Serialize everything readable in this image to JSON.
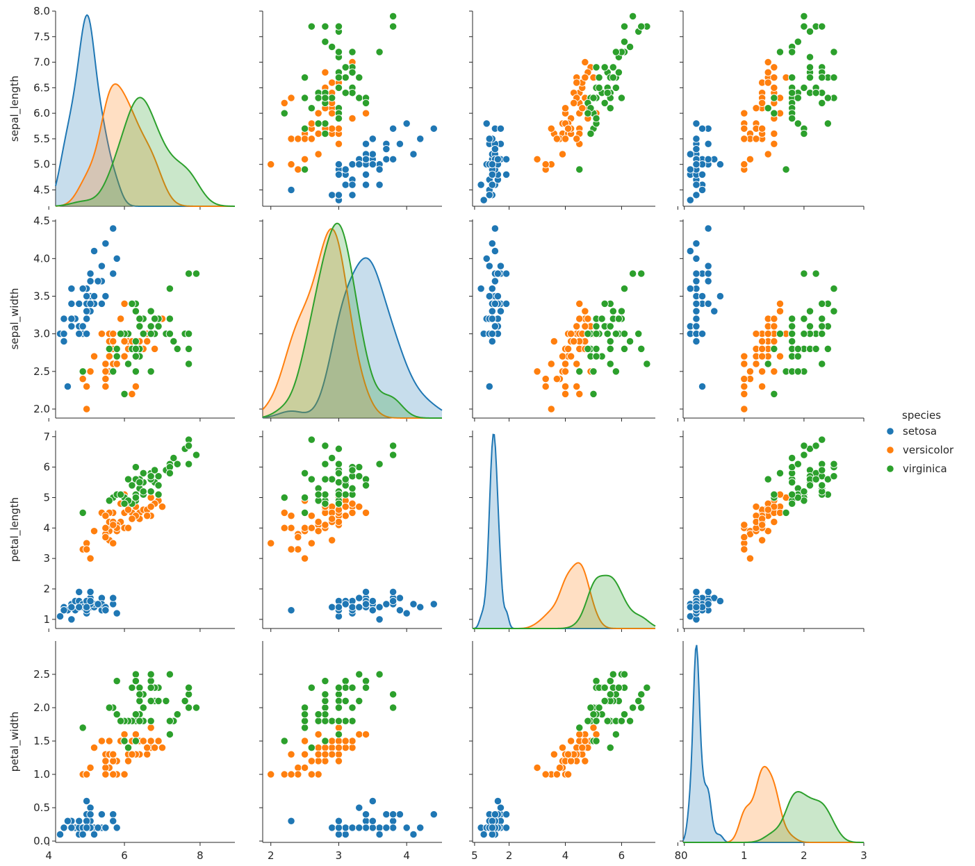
{
  "chart_data": {
    "type": "scatter",
    "kind": "pairplot",
    "variables": [
      "sepal_length",
      "sepal_width",
      "petal_length",
      "petal_width"
    ],
    "axis_limits": {
      "sepal_length": [
        4.18,
        8.92
      ],
      "sepal_width": [
        1.88,
        4.52
      ],
      "petal_length": [
        0.7,
        7.2
      ],
      "petal_width": [
        -0.02,
        3.0
      ]
    },
    "y_limits_first_row": [
      4.18,
      8.0
    ],
    "x_ticks": {
      "sepal_length": [
        "4",
        "6",
        "8"
      ],
      "sepal_width": [
        "2",
        "3",
        "4",
        "5"
      ],
      "petal_length": [
        "2",
        "4",
        "6",
        "8"
      ],
      "petal_width": [
        "0",
        "1",
        "2",
        "3"
      ]
    },
    "y_ticks": {
      "sepal_length": [
        "4.5",
        "5.0",
        "5.5",
        "6.0",
        "6.5",
        "7.0",
        "7.5",
        "8.0"
      ],
      "sepal_width": [
        "2.0",
        "2.5",
        "3.0",
        "3.5",
        "4.0",
        "4.5"
      ],
      "petal_length": [
        "1",
        "2",
        "3",
        "4",
        "5",
        "6",
        "7"
      ],
      "petal_width": [
        "0.0",
        "0.5",
        "1.0",
        "1.5",
        "2.0",
        "2.5"
      ]
    },
    "legend": {
      "title": "species",
      "placement": "center-right"
    },
    "diagonal": "kde",
    "series": [
      {
        "name": "setosa",
        "color": "#1f77b4",
        "points": [
          [
            5.1,
            3.5,
            1.4,
            0.2
          ],
          [
            4.9,
            3.0,
            1.4,
            0.2
          ],
          [
            4.7,
            3.2,
            1.3,
            0.2
          ],
          [
            4.6,
            3.1,
            1.5,
            0.2
          ],
          [
            5.0,
            3.6,
            1.4,
            0.2
          ],
          [
            5.4,
            3.9,
            1.7,
            0.4
          ],
          [
            4.6,
            3.4,
            1.4,
            0.3
          ],
          [
            5.0,
            3.4,
            1.5,
            0.2
          ],
          [
            4.4,
            2.9,
            1.4,
            0.2
          ],
          [
            4.9,
            3.1,
            1.5,
            0.1
          ],
          [
            5.4,
            3.7,
            1.5,
            0.2
          ],
          [
            4.8,
            3.4,
            1.6,
            0.2
          ],
          [
            4.8,
            3.0,
            1.4,
            0.1
          ],
          [
            4.3,
            3.0,
            1.1,
            0.1
          ],
          [
            5.8,
            4.0,
            1.2,
            0.2
          ],
          [
            5.7,
            4.4,
            1.5,
            0.4
          ],
          [
            5.4,
            3.9,
            1.3,
            0.4
          ],
          [
            5.1,
            3.5,
            1.4,
            0.3
          ],
          [
            5.7,
            3.8,
            1.7,
            0.3
          ],
          [
            5.1,
            3.8,
            1.5,
            0.3
          ],
          [
            5.4,
            3.4,
            1.7,
            0.2
          ],
          [
            5.1,
            3.7,
            1.5,
            0.4
          ],
          [
            4.6,
            3.6,
            1.0,
            0.2
          ],
          [
            5.1,
            3.3,
            1.7,
            0.5
          ],
          [
            4.8,
            3.4,
            1.9,
            0.2
          ],
          [
            5.0,
            3.0,
            1.6,
            0.2
          ],
          [
            5.0,
            3.4,
            1.6,
            0.4
          ],
          [
            5.2,
            3.5,
            1.5,
            0.2
          ],
          [
            5.2,
            3.4,
            1.4,
            0.2
          ],
          [
            4.7,
            3.2,
            1.6,
            0.2
          ],
          [
            4.8,
            3.1,
            1.6,
            0.2
          ],
          [
            5.4,
            3.4,
            1.5,
            0.4
          ],
          [
            5.2,
            4.1,
            1.5,
            0.1
          ],
          [
            5.5,
            4.2,
            1.4,
            0.2
          ],
          [
            4.9,
            3.1,
            1.5,
            0.2
          ],
          [
            5.0,
            3.2,
            1.2,
            0.2
          ],
          [
            5.5,
            3.5,
            1.3,
            0.2
          ],
          [
            4.9,
            3.6,
            1.4,
            0.1
          ],
          [
            4.4,
            3.0,
            1.3,
            0.2
          ],
          [
            5.1,
            3.4,
            1.5,
            0.2
          ],
          [
            5.0,
            3.5,
            1.3,
            0.3
          ],
          [
            4.5,
            2.3,
            1.3,
            0.3
          ],
          [
            4.4,
            3.2,
            1.3,
            0.2
          ],
          [
            5.0,
            3.5,
            1.6,
            0.6
          ],
          [
            5.1,
            3.8,
            1.9,
            0.4
          ],
          [
            4.8,
            3.0,
            1.4,
            0.3
          ],
          [
            5.1,
            3.8,
            1.6,
            0.2
          ],
          [
            4.6,
            3.2,
            1.4,
            0.2
          ],
          [
            5.3,
            3.7,
            1.5,
            0.2
          ],
          [
            5.0,
            3.3,
            1.4,
            0.2
          ]
        ]
      },
      {
        "name": "versicolor",
        "color": "#ff7f0e",
        "points": [
          [
            7.0,
            3.2,
            4.7,
            1.4
          ],
          [
            6.4,
            3.2,
            4.5,
            1.5
          ],
          [
            6.9,
            3.1,
            4.9,
            1.5
          ],
          [
            5.5,
            2.3,
            4.0,
            1.3
          ],
          [
            6.5,
            2.8,
            4.6,
            1.5
          ],
          [
            5.7,
            2.8,
            4.5,
            1.3
          ],
          [
            6.3,
            3.3,
            4.7,
            1.6
          ],
          [
            4.9,
            2.4,
            3.3,
            1.0
          ],
          [
            6.6,
            2.9,
            4.6,
            1.3
          ],
          [
            5.2,
            2.7,
            3.9,
            1.4
          ],
          [
            5.0,
            2.0,
            3.5,
            1.0
          ],
          [
            5.9,
            3.0,
            4.2,
            1.5
          ],
          [
            6.0,
            2.2,
            4.0,
            1.0
          ],
          [
            6.1,
            2.9,
            4.7,
            1.4
          ],
          [
            5.6,
            2.9,
            3.6,
            1.3
          ],
          [
            6.7,
            3.1,
            4.4,
            1.4
          ],
          [
            5.6,
            3.0,
            4.5,
            1.5
          ],
          [
            5.8,
            2.7,
            4.1,
            1.0
          ],
          [
            6.2,
            2.2,
            4.5,
            1.5
          ],
          [
            5.6,
            2.5,
            3.9,
            1.1
          ],
          [
            5.9,
            3.2,
            4.8,
            1.8
          ],
          [
            6.1,
            2.8,
            4.0,
            1.3
          ],
          [
            6.3,
            2.5,
            4.9,
            1.5
          ],
          [
            6.1,
            2.8,
            4.7,
            1.2
          ],
          [
            6.4,
            2.9,
            4.3,
            1.3
          ],
          [
            6.6,
            3.0,
            4.4,
            1.4
          ],
          [
            6.8,
            2.8,
            4.8,
            1.4
          ],
          [
            6.7,
            3.0,
            5.0,
            1.7
          ],
          [
            6.0,
            2.9,
            4.5,
            1.5
          ],
          [
            5.7,
            2.6,
            3.5,
            1.0
          ],
          [
            5.5,
            2.4,
            3.8,
            1.1
          ],
          [
            5.5,
            2.4,
            3.7,
            1.0
          ],
          [
            5.8,
            2.7,
            3.9,
            1.2
          ],
          [
            6.0,
            2.7,
            5.1,
            1.6
          ],
          [
            5.4,
            3.0,
            4.5,
            1.5
          ],
          [
            6.0,
            3.4,
            4.5,
            1.6
          ],
          [
            6.7,
            3.1,
            4.7,
            1.5
          ],
          [
            6.3,
            2.3,
            4.4,
            1.3
          ],
          [
            5.6,
            3.0,
            4.1,
            1.3
          ],
          [
            5.5,
            2.5,
            4.0,
            1.3
          ],
          [
            5.5,
            2.6,
            4.4,
            1.2
          ],
          [
            6.1,
            3.0,
            4.6,
            1.4
          ],
          [
            5.8,
            2.6,
            4.0,
            1.2
          ],
          [
            5.0,
            2.3,
            3.3,
            1.0
          ],
          [
            5.6,
            2.7,
            4.2,
            1.3
          ],
          [
            5.7,
            3.0,
            4.2,
            1.2
          ],
          [
            5.7,
            2.9,
            4.2,
            1.3
          ],
          [
            6.2,
            2.9,
            4.3,
            1.3
          ],
          [
            5.1,
            2.5,
            3.0,
            1.1
          ],
          [
            5.7,
            2.8,
            4.1,
            1.3
          ]
        ]
      },
      {
        "name": "virginica",
        "color": "#2ca02c",
        "points": [
          [
            6.3,
            3.3,
            6.0,
            2.5
          ],
          [
            5.8,
            2.7,
            5.1,
            1.9
          ],
          [
            7.1,
            3.0,
            5.9,
            2.1
          ],
          [
            6.3,
            2.9,
            5.6,
            1.8
          ],
          [
            6.5,
            3.0,
            5.8,
            2.2
          ],
          [
            7.6,
            3.0,
            6.6,
            2.1
          ],
          [
            4.9,
            2.5,
            4.5,
            1.7
          ],
          [
            7.3,
            2.9,
            6.3,
            1.8
          ],
          [
            6.7,
            2.5,
            5.8,
            1.8
          ],
          [
            7.2,
            3.6,
            6.1,
            2.5
          ],
          [
            6.5,
            3.2,
            5.1,
            2.0
          ],
          [
            6.4,
            2.7,
            5.3,
            1.9
          ],
          [
            6.8,
            3.0,
            5.5,
            2.1
          ],
          [
            5.7,
            2.5,
            5.0,
            2.0
          ],
          [
            5.8,
            2.8,
            5.1,
            2.4
          ],
          [
            6.4,
            3.2,
            5.3,
            2.3
          ],
          [
            6.5,
            3.0,
            5.5,
            1.8
          ],
          [
            7.7,
            3.8,
            6.7,
            2.2
          ],
          [
            7.7,
            2.6,
            6.9,
            2.3
          ],
          [
            6.0,
            2.2,
            5.0,
            1.5
          ],
          [
            6.9,
            3.2,
            5.7,
            2.3
          ],
          [
            5.6,
            2.8,
            4.9,
            2.0
          ],
          [
            7.7,
            2.8,
            6.7,
            2.0
          ],
          [
            6.3,
            2.7,
            4.9,
            1.8
          ],
          [
            6.7,
            3.3,
            5.7,
            2.1
          ],
          [
            7.2,
            3.2,
            6.0,
            1.8
          ],
          [
            6.2,
            2.8,
            4.8,
            1.8
          ],
          [
            6.1,
            3.0,
            4.9,
            1.8
          ],
          [
            6.4,
            2.8,
            5.6,
            2.1
          ],
          [
            7.2,
            3.0,
            5.8,
            1.6
          ],
          [
            7.4,
            2.8,
            6.1,
            1.9
          ],
          [
            7.9,
            3.8,
            6.4,
            2.0
          ],
          [
            6.4,
            2.8,
            5.6,
            2.2
          ],
          [
            6.3,
            2.8,
            5.1,
            1.5
          ],
          [
            6.1,
            2.6,
            5.6,
            1.4
          ],
          [
            7.7,
            3.0,
            6.1,
            2.3
          ],
          [
            6.3,
            3.4,
            5.6,
            2.4
          ],
          [
            6.4,
            3.1,
            5.5,
            1.8
          ],
          [
            6.0,
            3.0,
            4.8,
            1.8
          ],
          [
            6.9,
            3.1,
            5.4,
            2.1
          ],
          [
            6.7,
            3.1,
            5.6,
            2.4
          ],
          [
            6.9,
            3.1,
            5.1,
            2.3
          ],
          [
            5.8,
            2.7,
            5.1,
            1.9
          ],
          [
            6.8,
            3.2,
            5.9,
            2.3
          ],
          [
            6.7,
            3.3,
            5.7,
            2.5
          ],
          [
            6.7,
            3.0,
            5.2,
            2.3
          ],
          [
            6.3,
            2.5,
            5.0,
            1.9
          ],
          [
            6.5,
            3.0,
            5.2,
            2.0
          ],
          [
            6.2,
            3.4,
            5.4,
            2.3
          ],
          [
            5.9,
            3.0,
            5.1,
            1.8
          ]
        ]
      }
    ]
  }
}
